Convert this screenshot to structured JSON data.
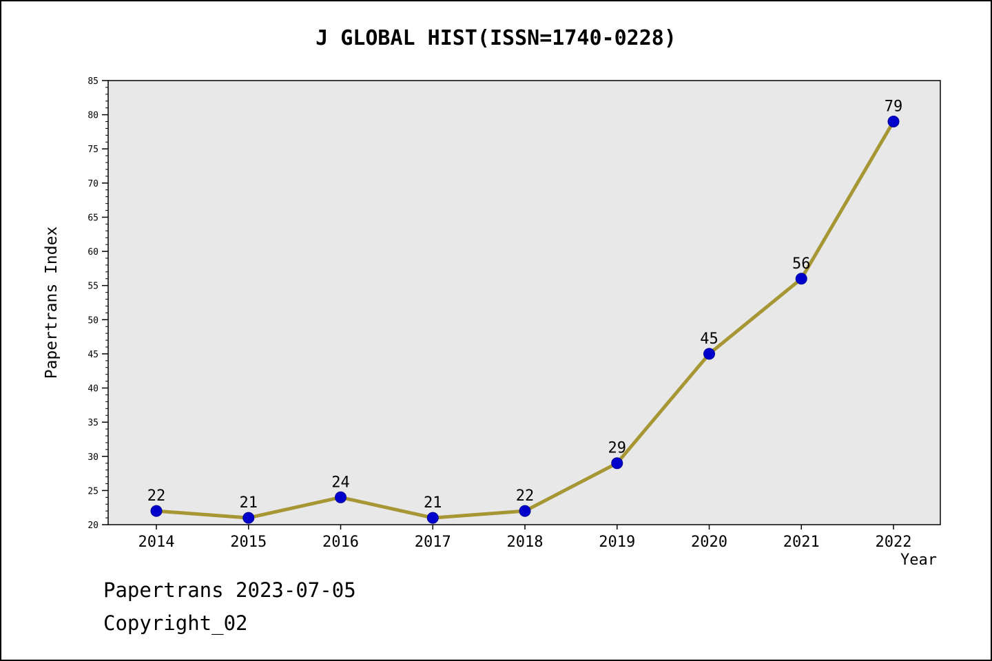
{
  "title": "J GLOBAL HIST(ISSN=1740-0228)",
  "footer": {
    "line1": "Papertrans 2023-07-05",
    "line2": "Copyright_02"
  },
  "chart_data": {
    "type": "line",
    "title": "J GLOBAL HIST(ISSN=1740-0228)",
    "categories": [
      "2014",
      "2015",
      "2016",
      "2017",
      "2018",
      "2019",
      "2020",
      "2021",
      "2022"
    ],
    "values": [
      22,
      21,
      24,
      21,
      22,
      29,
      45,
      56,
      79
    ],
    "xlabel": "Year",
    "ylabel": "Papertrans Index",
    "ylim": [
      20,
      85
    ],
    "ytick_step": 5,
    "minor_tick_step": 1,
    "grid": false,
    "legend": "none",
    "colors": {
      "line": "#a69634",
      "marker": "#0000cc",
      "marker_edge": "#000099",
      "plot_bg": "#e8e8e8",
      "axis": "#000000"
    }
  }
}
